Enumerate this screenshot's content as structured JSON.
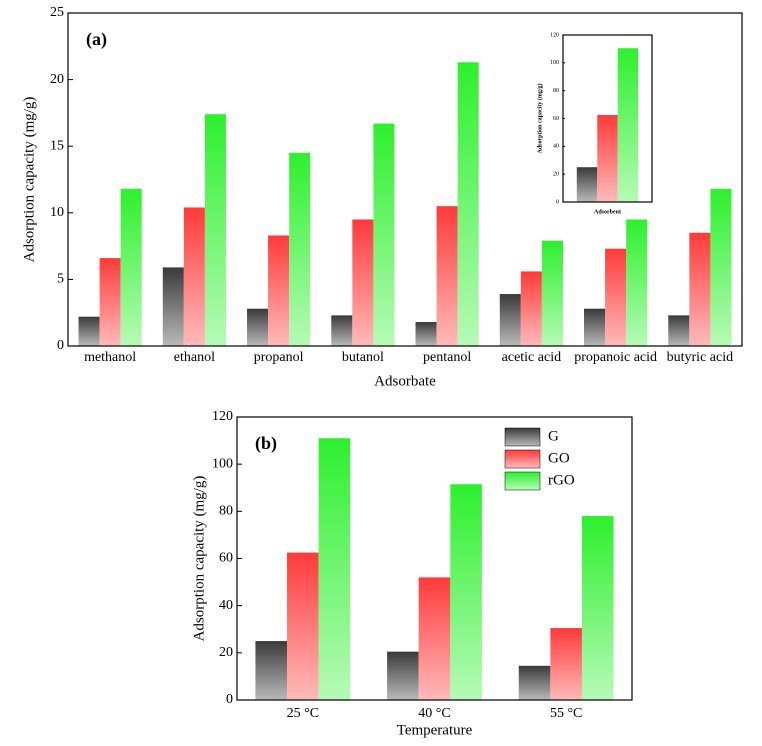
{
  "chart_data": [
    {
      "type": "bar",
      "annotation": "(a)",
      "xlabel": "Adsorbate",
      "ylabel": "Adsorption capacity (mg/g)",
      "categories": [
        "methanol",
        "ethanol",
        "propanol",
        "butanol",
        "pentanol",
        "acetic acid",
        "propanoic acid",
        "butyric acid"
      ],
      "series": [
        {
          "color": "#3a3a3a",
          "values": [
            2.2,
            5.9,
            2.8,
            2.3,
            1.8,
            3.9,
            2.8,
            2.3
          ]
        },
        {
          "color": "#ff3a3a",
          "values": [
            6.6,
            10.4,
            8.3,
            9.5,
            10.5,
            5.6,
            7.3,
            8.5
          ]
        },
        {
          "color": "#2df02d",
          "values": [
            11.8,
            17.4,
            14.5,
            16.7,
            21.3,
            7.9,
            9.5,
            11.8
          ]
        }
      ],
      "ylim": [
        0,
        25
      ],
      "yticks": [
        0,
        5,
        10,
        15,
        20,
        25
      ],
      "grid": false
    },
    {
      "type": "bar",
      "xlabel": "Adsorbent",
      "ylabel": "Adsorption capacity (mg/g)",
      "categories": [
        null
      ],
      "series": [
        {
          "color": "#3a3a3a",
          "values": [
            25
          ]
        },
        {
          "color": "#ff3a3a",
          "values": [
            62.5
          ]
        },
        {
          "color": "#2df02d",
          "values": [
            110.5
          ]
        }
      ],
      "ylim": [
        0,
        120
      ],
      "yticks": [
        0,
        20,
        40,
        60,
        80,
        100,
        120
      ],
      "grid": false
    },
    {
      "type": "bar",
      "annotation": "(b)",
      "xlabel": "Temperature",
      "ylabel": "Adsorption capacity (mg/g)",
      "categories": [
        "25 °C",
        "40 °C",
        "55 °C"
      ],
      "series": [
        {
          "name": "G",
          "color": "#3a3a3a",
          "values": [
            25,
            20.5,
            14.5
          ]
        },
        {
          "name": "GO",
          "color": "#ff3a3a",
          "values": [
            62.5,
            52,
            30.5
          ]
        },
        {
          "name": "rGO",
          "color": "#2df02d",
          "values": [
            111,
            91.5,
            78
          ]
        }
      ],
      "ylim": [
        0,
        120
      ],
      "yticks": [
        0,
        20,
        40,
        60,
        80,
        100,
        120
      ],
      "grid": false,
      "legend": "upper-right"
    }
  ]
}
